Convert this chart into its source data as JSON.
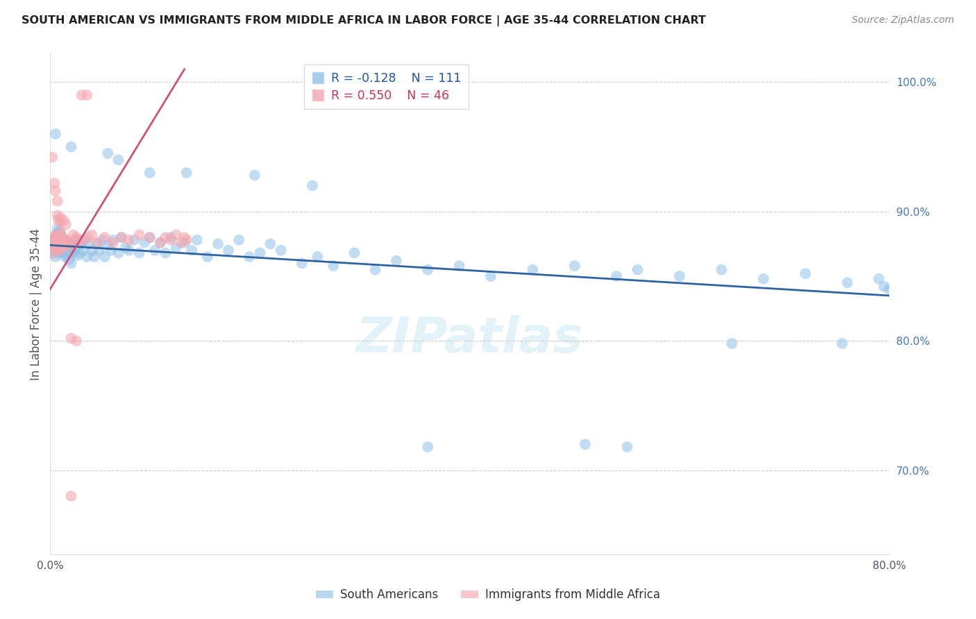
{
  "title": "SOUTH AMERICAN VS IMMIGRANTS FROM MIDDLE AFRICA IN LABOR FORCE | AGE 35-44 CORRELATION CHART",
  "source": "Source: ZipAtlas.com",
  "ylabel": "In Labor Force | Age 35-44",
  "xlim": [
    0.0,
    0.8
  ],
  "ylim": [
    0.635,
    1.022
  ],
  "yticks": [
    0.7,
    0.8,
    0.9,
    1.0
  ],
  "xticks": [
    0.0,
    0.1,
    0.2,
    0.3,
    0.4,
    0.5,
    0.6,
    0.7,
    0.8
  ],
  "ytick_labels": [
    "70.0%",
    "80.0%",
    "90.0%",
    "100.0%"
  ],
  "blue_color": "#91C0E8",
  "pink_color": "#F4A7B0",
  "blue_line_color": "#2E62A0",
  "pink_line_color": "#D45070",
  "legend_blue_R": "-0.128",
  "legend_blue_N": "111",
  "legend_pink_R": "0.550",
  "legend_pink_N": "46",
  "blue_label": "South Americans",
  "pink_label": "Immigrants from Middle Africa",
  "watermark": "ZIPatlas",
  "blue_trend_x0": 0.0,
  "blue_trend_y0": 0.874,
  "blue_trend_x1": 0.8,
  "blue_trend_y1": 0.835,
  "pink_trend_x0": 0.0,
  "pink_trend_y0": 0.84,
  "pink_trend_x1": 0.128,
  "pink_trend_y1": 1.01,
  "blue_x": [
    0.002,
    0.003,
    0.003,
    0.004,
    0.004,
    0.005,
    0.005,
    0.005,
    0.006,
    0.006,
    0.006,
    0.007,
    0.007,
    0.007,
    0.007,
    0.008,
    0.008,
    0.008,
    0.009,
    0.009,
    0.009,
    0.01,
    0.01,
    0.01,
    0.011,
    0.011,
    0.012,
    0.012,
    0.013,
    0.013,
    0.014,
    0.014,
    0.015,
    0.015,
    0.016,
    0.016,
    0.017,
    0.018,
    0.018,
    0.019,
    0.02,
    0.02,
    0.021,
    0.022,
    0.023,
    0.024,
    0.025,
    0.026,
    0.027,
    0.028,
    0.03,
    0.032,
    0.033,
    0.035,
    0.037,
    0.04,
    0.042,
    0.045,
    0.047,
    0.05,
    0.052,
    0.055,
    0.058,
    0.06,
    0.065,
    0.068,
    0.072,
    0.075,
    0.08,
    0.085,
    0.09,
    0.095,
    0.1,
    0.105,
    0.11,
    0.115,
    0.12,
    0.128,
    0.135,
    0.14,
    0.15,
    0.16,
    0.17,
    0.18,
    0.19,
    0.2,
    0.21,
    0.22,
    0.24,
    0.255,
    0.27,
    0.29,
    0.31,
    0.33,
    0.36,
    0.39,
    0.42,
    0.46,
    0.5,
    0.54,
    0.56,
    0.6,
    0.64,
    0.68,
    0.72,
    0.76,
    0.79,
    0.795,
    0.8,
    0.81,
    0.82
  ],
  "blue_y": [
    0.873,
    0.868,
    0.877,
    0.872,
    0.879,
    0.865,
    0.872,
    0.88,
    0.87,
    0.876,
    0.883,
    0.868,
    0.875,
    0.88,
    0.887,
    0.87,
    0.876,
    0.883,
    0.87,
    0.877,
    0.885,
    0.869,
    0.876,
    0.882,
    0.87,
    0.878,
    0.868,
    0.876,
    0.87,
    0.878,
    0.865,
    0.874,
    0.868,
    0.876,
    0.866,
    0.875,
    0.87,
    0.863,
    0.872,
    0.868,
    0.86,
    0.87,
    0.875,
    0.868,
    0.876,
    0.87,
    0.878,
    0.866,
    0.875,
    0.868,
    0.876,
    0.87,
    0.878,
    0.865,
    0.875,
    0.87,
    0.865,
    0.875,
    0.87,
    0.878,
    0.865,
    0.874,
    0.87,
    0.878,
    0.868,
    0.88,
    0.872,
    0.87,
    0.878,
    0.868,
    0.876,
    0.88,
    0.87,
    0.876,
    0.868,
    0.88,
    0.872,
    0.876,
    0.87,
    0.878,
    0.865,
    0.875,
    0.87,
    0.878,
    0.865,
    0.868,
    0.875,
    0.87,
    0.86,
    0.865,
    0.858,
    0.868,
    0.855,
    0.862,
    0.855,
    0.858,
    0.85,
    0.855,
    0.858,
    0.85,
    0.855,
    0.85,
    0.855,
    0.848,
    0.852,
    0.845,
    0.848,
    0.842,
    0.84,
    0.838,
    0.836
  ],
  "blue_outliers_x": [
    0.005,
    0.02,
    0.055,
    0.065,
    0.095,
    0.13,
    0.195,
    0.25,
    0.36,
    0.51,
    0.55,
    0.65,
    0.755
  ],
  "blue_outliers_y": [
    0.96,
    0.95,
    0.945,
    0.94,
    0.93,
    0.93,
    0.928,
    0.92,
    0.718,
    0.72,
    0.718,
    0.798,
    0.798
  ],
  "pink_x": [
    0.002,
    0.003,
    0.003,
    0.004,
    0.005,
    0.005,
    0.006,
    0.006,
    0.007,
    0.007,
    0.008,
    0.008,
    0.009,
    0.009,
    0.01,
    0.01,
    0.011,
    0.012,
    0.012,
    0.013,
    0.014,
    0.015,
    0.016,
    0.017,
    0.018,
    0.02,
    0.022,
    0.025,
    0.028,
    0.032,
    0.036,
    0.04,
    0.045,
    0.052,
    0.06,
    0.068,
    0.075,
    0.085,
    0.095,
    0.105,
    0.11,
    0.115,
    0.12,
    0.125,
    0.128,
    0.13
  ],
  "pink_y": [
    0.868,
    0.875,
    0.88,
    0.872,
    0.875,
    0.88,
    0.87,
    0.877,
    0.872,
    0.88,
    0.875,
    0.882,
    0.876,
    0.87,
    0.878,
    0.884,
    0.876,
    0.88,
    0.876,
    0.872,
    0.878,
    0.876,
    0.878,
    0.876,
    0.874,
    0.876,
    0.882,
    0.88,
    0.878,
    0.878,
    0.88,
    0.882,
    0.876,
    0.88,
    0.876,
    0.88,
    0.878,
    0.882,
    0.88,
    0.876,
    0.88,
    0.878,
    0.882,
    0.876,
    0.88,
    0.878
  ],
  "pink_outliers_x": [
    0.002,
    0.004,
    0.005,
    0.007,
    0.007,
    0.008,
    0.009,
    0.01,
    0.013,
    0.015,
    0.02,
    0.025,
    0.03,
    0.035,
    0.02
  ],
  "pink_outliers_y": [
    0.942,
    0.922,
    0.916,
    0.908,
    0.897,
    0.894,
    0.892,
    0.895,
    0.893,
    0.89,
    0.802,
    0.8,
    0.99,
    0.99,
    0.68
  ]
}
